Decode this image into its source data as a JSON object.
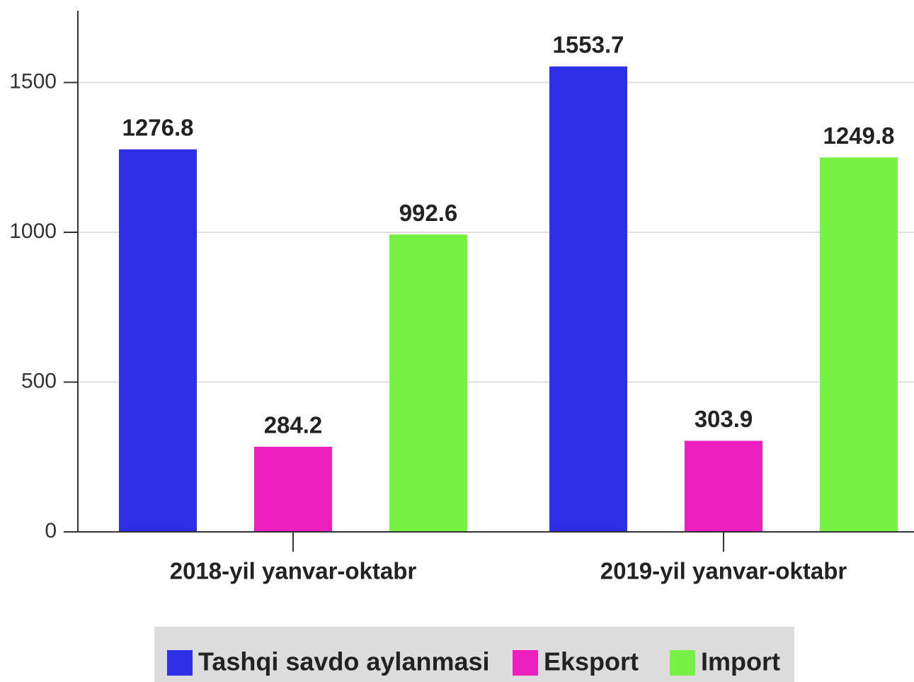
{
  "chart_data": {
    "type": "bar",
    "categories": [
      "2018-yil yanvar-oktabr",
      "2019-yil yanvar-oktabr"
    ],
    "series": [
      {
        "name": "Tashqi savdo aylanmasi",
        "color": "#2f2fe8",
        "values": [
          1276.8,
          1553.7
        ]
      },
      {
        "name": "Eksport",
        "color": "#ee1fbf",
        "values": [
          284.2,
          303.9
        ]
      },
      {
        "name": "Import",
        "color": "#77f244",
        "values": [
          992.6,
          1249.8
        ]
      }
    ],
    "ylim": [
      0,
      1740
    ],
    "yticks": [
      0,
      500,
      1000,
      1500
    ],
    "grid": true,
    "legend": "bottom"
  }
}
